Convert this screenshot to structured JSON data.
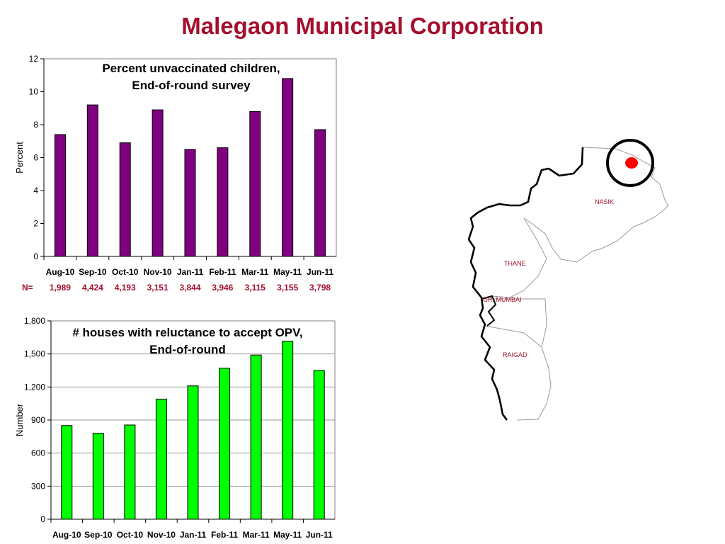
{
  "page": {
    "title": "Malegaon Municipal Corporation"
  },
  "chart_data": [
    {
      "type": "bar",
      "title_lines": [
        "Percent unvaccinated children,",
        "End-of-round survey"
      ],
      "ylabel": "Percent",
      "xlabel": "",
      "ylim": [
        0,
        12
      ],
      "yticks": [
        0,
        2,
        4,
        6,
        8,
        10,
        12
      ],
      "ytick_labels": [
        "0",
        "2",
        "4",
        "6",
        "8",
        "10",
        "12"
      ],
      "categories": [
        "Aug-10",
        "Sep-10",
        "Oct-10",
        "Nov-10",
        "Jan-11",
        "Feb-11",
        "Mar-11",
        "May-11",
        "Jun-11"
      ],
      "values": [
        7.4,
        9.2,
        6.9,
        8.9,
        6.5,
        6.6,
        8.8,
        10.8,
        7.7
      ],
      "sample_size_label": "N=",
      "sample_sizes": [
        "1,989",
        "4,424",
        "4,193",
        "3,151",
        "3,844",
        "3,946",
        "3,115",
        "3,155",
        "3,798"
      ],
      "bar_color": "#800080",
      "grid": false
    },
    {
      "type": "bar",
      "title_lines": [
        "# houses with reluctance to accept OPV,",
        "End-of-round"
      ],
      "ylabel": "Number",
      "xlabel": "",
      "ylim": [
        0,
        1800
      ],
      "yticks": [
        0,
        300,
        600,
        900,
        1200,
        1500,
        1800
      ],
      "ytick_labels": [
        "0",
        "300",
        "600",
        "900",
        "1,200",
        "1,500",
        "1,800"
      ],
      "categories": [
        "Aug-10",
        "Sep-10",
        "Oct-10",
        "Nov-10",
        "Jan-11",
        "Feb-11",
        "Mar-11",
        "May-11",
        "Jun-11"
      ],
      "values": [
        850,
        780,
        855,
        1090,
        1210,
        1370,
        1490,
        1615,
        1350
      ],
      "bar_color": "#00ff00",
      "grid": true
    }
  ],
  "map": {
    "labels": [
      "NASIK",
      "THANE",
      "GR. MUMBAI",
      "RAIGAD"
    ],
    "marker_color": "#ff0000"
  }
}
